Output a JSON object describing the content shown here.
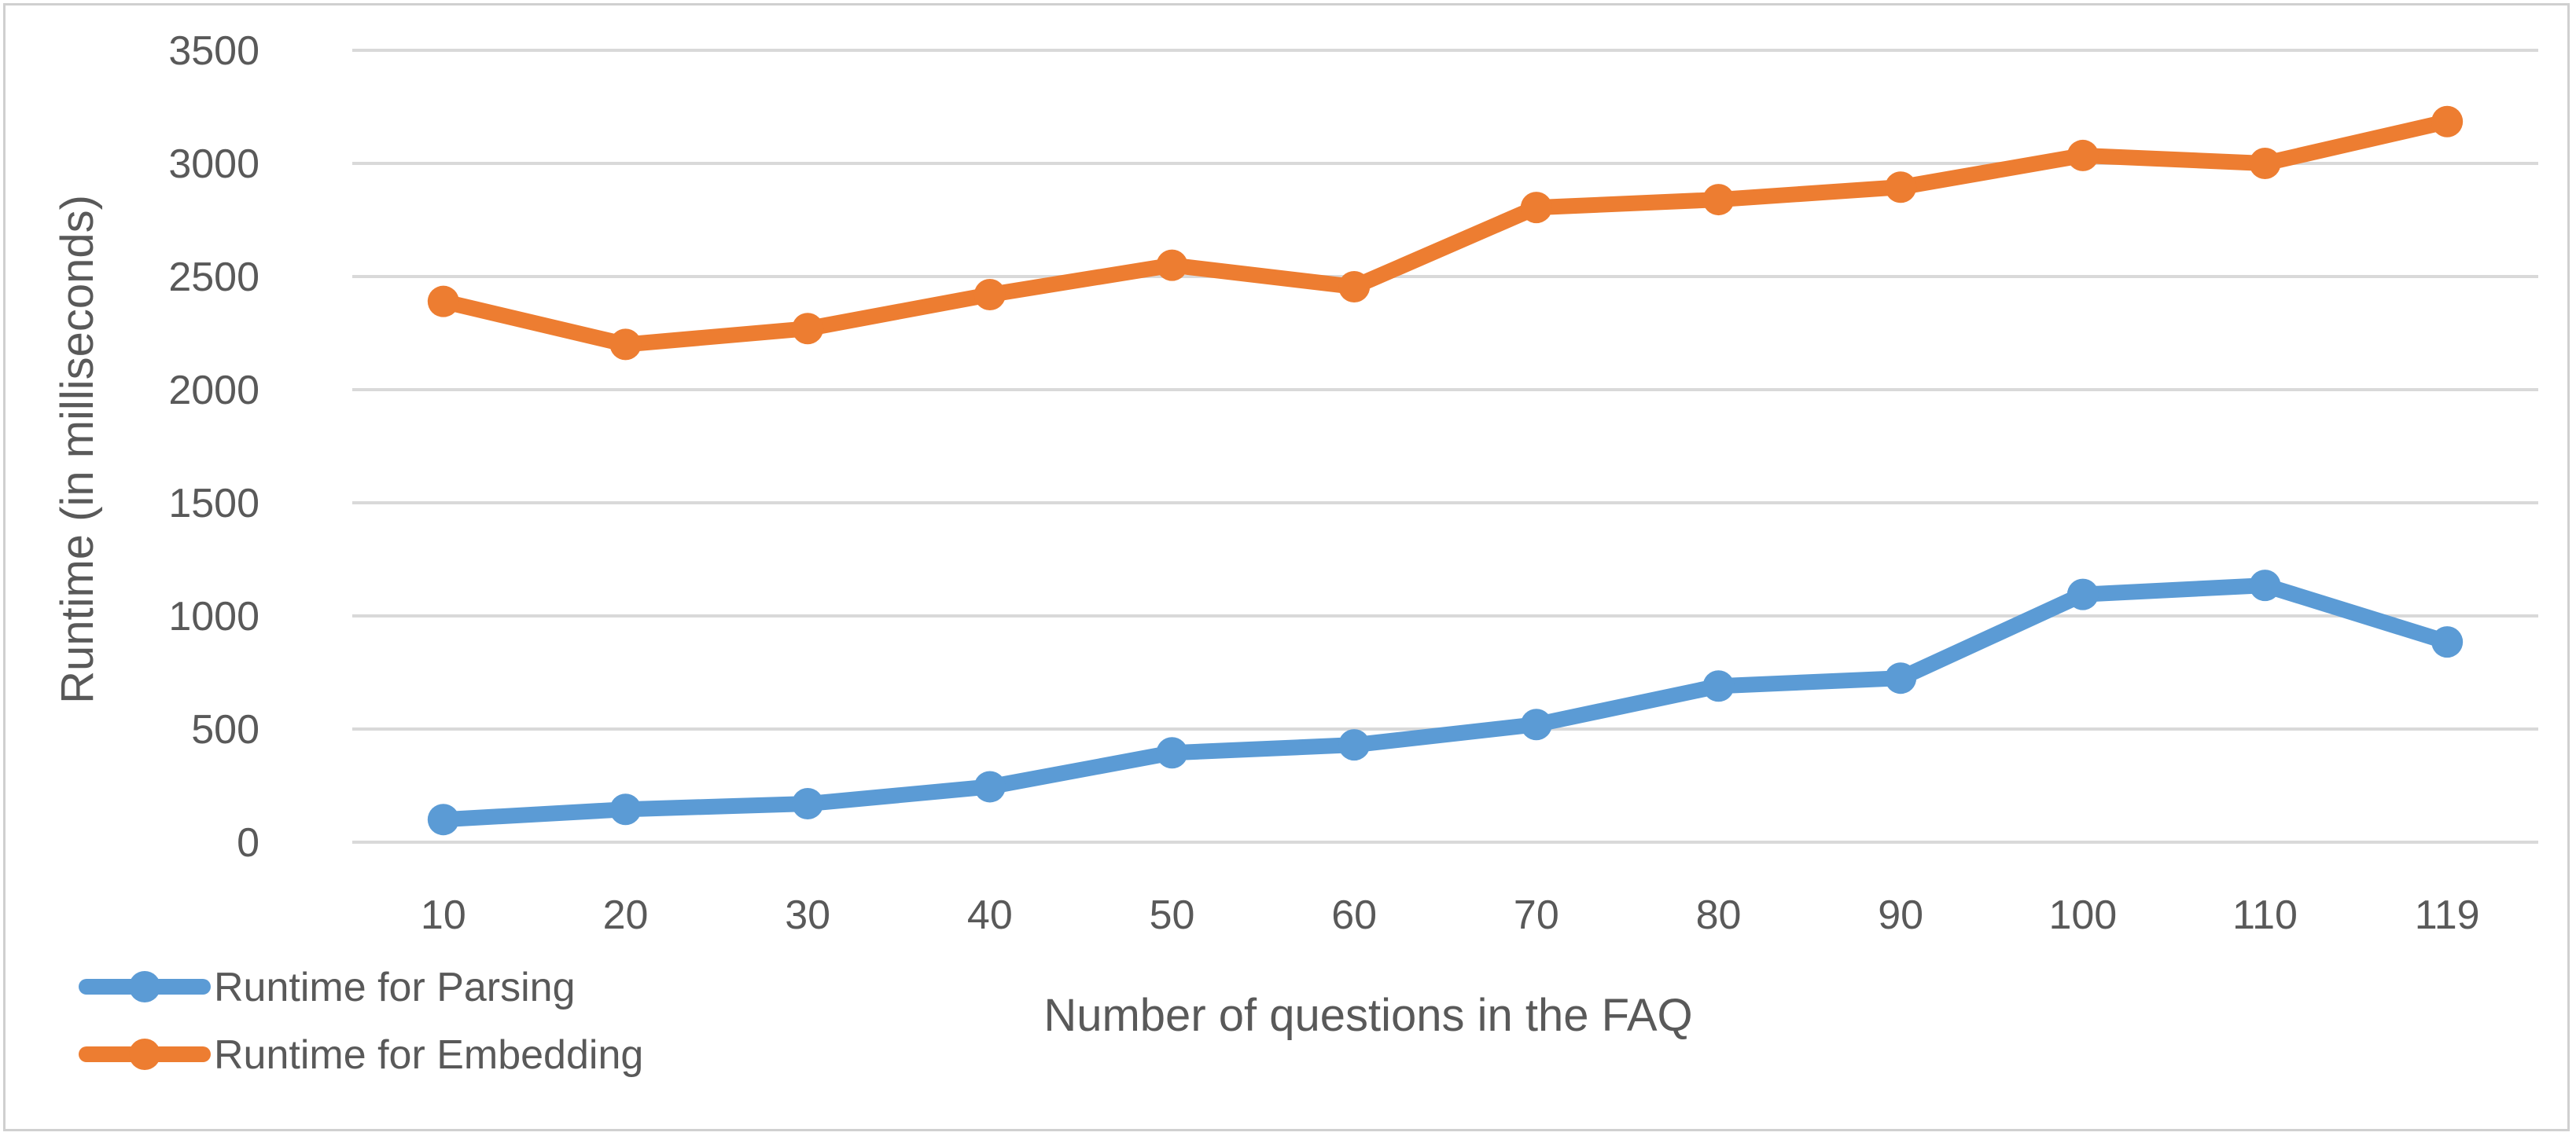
{
  "chart_data": {
    "type": "line",
    "title": "",
    "xlabel": "Number of questions in the FAQ",
    "ylabel": "Runtime (in milliseconds)",
    "categories": [
      "10",
      "20",
      "30",
      "40",
      "50",
      "60",
      "70",
      "80",
      "90",
      "100",
      "110",
      "119"
    ],
    "ylim": [
      0,
      3500
    ],
    "yticks": [
      0,
      500,
      1000,
      1500,
      2000,
      2500,
      3000,
      3500
    ],
    "grid": true,
    "legend_position": "bottom-left",
    "series": [
      {
        "name": "Runtime for Parsing",
        "color": "#5b9bd5",
        "values": [
          100,
          145,
          170,
          245,
          395,
          430,
          520,
          690,
          725,
          1095,
          1135,
          885
        ]
      },
      {
        "name": "Runtime for Embedding",
        "color": "#ed7d31",
        "values": [
          2390,
          2200,
          2270,
          2420,
          2550,
          2455,
          2805,
          2840,
          2895,
          3035,
          3000,
          3185
        ]
      }
    ]
  }
}
